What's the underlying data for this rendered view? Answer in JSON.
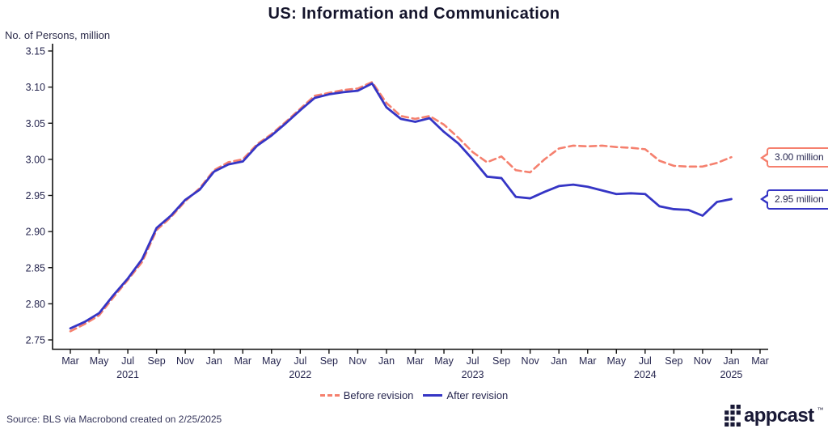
{
  "title": "US: Information and Communication",
  "y_axis_label": "No. of Persons, million",
  "source": "Source: BLS via Macrobond created on 2/25/2025",
  "logo": {
    "text": "appcast",
    "trademark": "™"
  },
  "colors": {
    "before_revision": "#f5806e",
    "after_revision": "#3535c5",
    "axis": "#111111",
    "text": "#26264f"
  },
  "callouts": [
    {
      "label": "3.00 million",
      "series": "Before revision"
    },
    {
      "label": "2.95 million",
      "series": "After revision"
    }
  ],
  "chart_data": {
    "type": "line",
    "title": "US: Information and Communication",
    "ylabel": "No. of Persons, million",
    "ylim": [
      2.75,
      3.15
    ],
    "y_ticks": [
      2.75,
      2.8,
      2.85,
      2.9,
      2.95,
      3.0,
      3.05,
      3.1,
      3.15
    ],
    "x_start": "2021-03",
    "x_end_axis": "2025-03",
    "x_tick_labels": [
      "Mar",
      "May",
      "Jul",
      "Sep",
      "Nov",
      "Jan",
      "Mar",
      "May",
      "Jul",
      "Sep",
      "Nov",
      "Jan",
      "Mar",
      "May",
      "Jul",
      "Sep",
      "Nov",
      "Jan",
      "Mar",
      "May",
      "Jul",
      "Sep",
      "Nov",
      "Jan",
      "Mar"
    ],
    "year_labels": [
      {
        "text": "2021",
        "month_index": 4
      },
      {
        "text": "2022",
        "month_index": 16
      },
      {
        "text": "2023",
        "month_index": 28
      },
      {
        "text": "2024",
        "month_index": 40
      },
      {
        "text": "2025",
        "month_index": 46
      }
    ],
    "legend_position": "bottom-center",
    "grid": false,
    "series": [
      {
        "name": "Before revision",
        "color": "#f5806e",
        "style": "dashed",
        "values": [
          2.762,
          2.772,
          2.784,
          2.809,
          2.833,
          2.858,
          2.902,
          2.92,
          2.942,
          2.96,
          2.985,
          2.996,
          3.0,
          3.021,
          3.035,
          3.052,
          3.07,
          3.088,
          3.092,
          3.096,
          3.098,
          3.107,
          3.078,
          3.06,
          3.056,
          3.06,
          3.048,
          3.03,
          3.01,
          2.996,
          3.004,
          2.985,
          2.982,
          3.0,
          3.015,
          3.019,
          3.018,
          3.019,
          3.017,
          3.016,
          3.014,
          2.998,
          2.991,
          2.99,
          2.99,
          2.995,
          3.003
        ]
      },
      {
        "name": "After revision",
        "color": "#3535c5",
        "style": "solid",
        "values": [
          2.766,
          2.775,
          2.787,
          2.812,
          2.835,
          2.862,
          2.905,
          2.922,
          2.944,
          2.958,
          2.983,
          2.993,
          2.997,
          3.019,
          3.033,
          3.05,
          3.068,
          3.085,
          3.09,
          3.093,
          3.095,
          3.105,
          3.072,
          3.056,
          3.052,
          3.057,
          3.038,
          3.022,
          3.0,
          2.976,
          2.974,
          2.948,
          2.946,
          2.955,
          2.963,
          2.965,
          2.962,
          2.957,
          2.952,
          2.953,
          2.952,
          2.935,
          2.931,
          2.93,
          2.922,
          2.941,
          2.945
        ]
      }
    ]
  }
}
